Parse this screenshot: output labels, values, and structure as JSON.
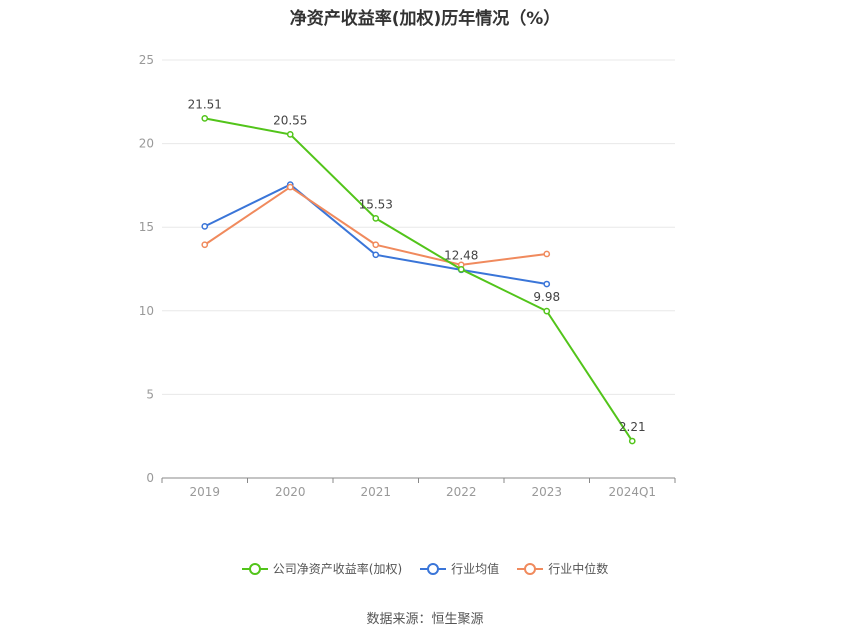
{
  "title": "净资产收益率(加权)历年情况（%）",
  "source": "数据来源：恒生聚源",
  "chart_data": {
    "type": "line",
    "title": "净资产收益率(加权)历年情况（%）",
    "categories": [
      "2019",
      "2020",
      "2021",
      "2022",
      "2023",
      "2024Q1"
    ],
    "ylim": [
      0,
      25
    ],
    "yticks": [
      0,
      5,
      10,
      15,
      20,
      25
    ],
    "grid": true,
    "legend_position": "bottom",
    "series": [
      {
        "name": "公司净资产收益率(加权)",
        "color": "#52c41a",
        "values": [
          21.51,
          20.55,
          15.53,
          12.48,
          9.98,
          2.21
        ],
        "labels": [
          "21.51",
          "20.55",
          "15.53",
          "12.48",
          "9.98",
          "2.21"
        ]
      },
      {
        "name": "行业均值",
        "color": "#3a75d8",
        "values": [
          15.05,
          17.55,
          13.35,
          12.45,
          11.6,
          null
        ]
      },
      {
        "name": "行业中位数",
        "color": "#f08a5d",
        "values": [
          13.95,
          17.4,
          13.95,
          12.75,
          13.4,
          null
        ]
      }
    ]
  }
}
